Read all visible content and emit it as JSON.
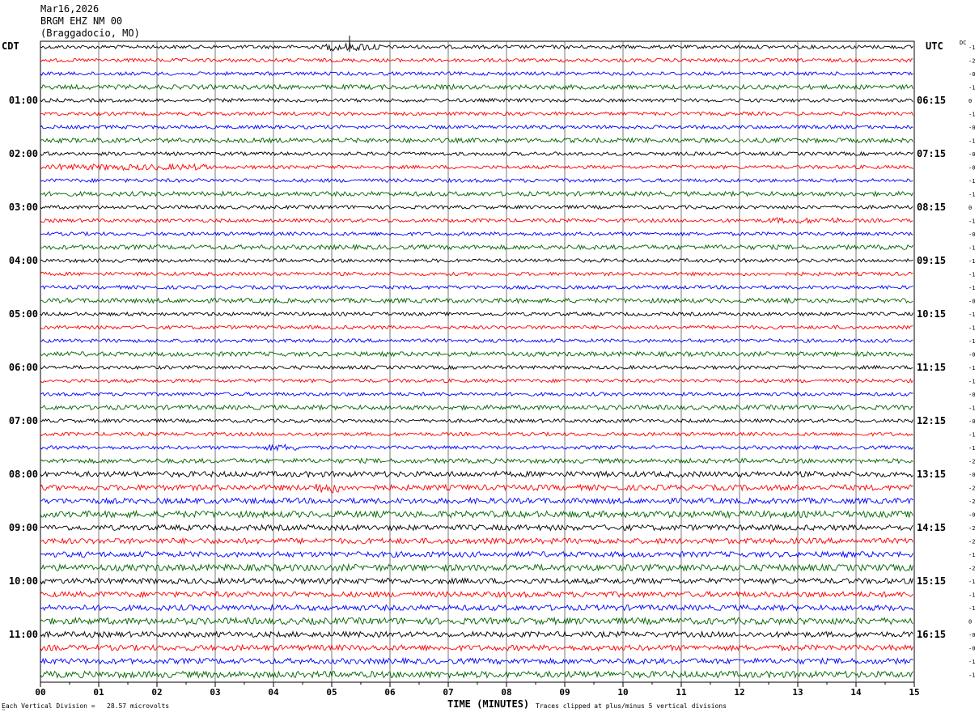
{
  "header": {
    "date": "Mar16,2026",
    "station": "BRGM EHZ NM 00",
    "location": "(Braggadocio, MO)"
  },
  "left_tz": "CDT",
  "right_tz": "UTC",
  "dc_label": "DC",
  "colors": [
    "#000000",
    "#ff0000",
    "#0000ff",
    "#006400"
  ],
  "chart_data": {
    "type": "line",
    "title": "BRGM EHZ NM 00",
    "xlabel": "TIME (MINUTES)",
    "xlim": [
      0,
      15
    ],
    "x_ticks": [
      "00",
      "01",
      "02",
      "03",
      "04",
      "05",
      "06",
      "07",
      "08",
      "09",
      "10",
      "11",
      "12",
      "13",
      "14",
      "15"
    ],
    "left_hour_labels": [
      "01:00",
      "02:00",
      "03:00",
      "04:00",
      "05:00",
      "06:00",
      "07:00",
      "08:00",
      "09:00",
      "10:00",
      "11:00"
    ],
    "right_hour_labels": [
      "06:15",
      "07:15",
      "08:15",
      "09:15",
      "10:15",
      "11:15",
      "12:15",
      "13:15",
      "14:15",
      "15:15",
      "16:15"
    ],
    "trace_count": 48,
    "dc_offsets": [
      "-1",
      "-2",
      "-0",
      "-1",
      "0",
      "-1",
      "-0",
      "-1",
      "-0",
      "-0",
      "-1",
      "-1",
      "0",
      "-1",
      "-0",
      "-1",
      "-1",
      "-1",
      "-1",
      "-0",
      "-1",
      "-1",
      "-1",
      "-0",
      "-1",
      "-1",
      "-0",
      "-1",
      "-0",
      "-1",
      "-1",
      "-2",
      "-0",
      "-2",
      "-2",
      "-0",
      "-2",
      "-2",
      "-1",
      "-2",
      "-1",
      "-1",
      "-1",
      "0",
      "-0",
      "-0",
      "-1",
      "-1"
    ],
    "vertical_division": "28.57 microvolts",
    "clipping": "plus/minus 5 vertical divisions"
  },
  "footer": {
    "scale_note": "Each Vertical Division =   28.57 microvolts",
    "clip_note": "Traces clipped at plus/minus 5 vertical divisions",
    "xlabel": "TIME (MINUTES)"
  }
}
